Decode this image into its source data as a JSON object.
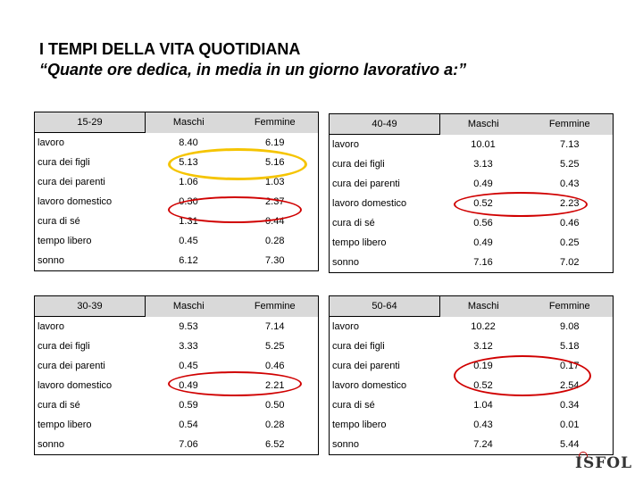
{
  "title": "I TEMPI DELLA VITA QUOTIDIANA",
  "subtitle": "“Quante ore dedica, in media in un giorno lavorativo a:”",
  "tables": [
    {
      "group": "15-29",
      "col1": "Maschi",
      "col2": "Femmine",
      "rows": [
        {
          "label": "lavoro",
          "m": "8.40",
          "f": "6.19"
        },
        {
          "label": "cura dei figli",
          "m": "5.13",
          "f": "5.16"
        },
        {
          "label": "cura dei parenti",
          "m": "1.06",
          "f": "1.03"
        },
        {
          "label": "lavoro domestico",
          "m": "0.30",
          "f": "2.37"
        },
        {
          "label": "cura di sé",
          "m": "1.31",
          "f": "0.44"
        },
        {
          "label": "tempo libero",
          "m": "0.45",
          "f": "0.28"
        },
        {
          "label": "sonno",
          "m": "6.12",
          "f": "7.30"
        }
      ]
    },
    {
      "group": "40-49",
      "col1": "Maschi",
      "col2": "Femmine",
      "rows": [
        {
          "label": "lavoro",
          "m": "10.01",
          "f": "7.13"
        },
        {
          "label": "cura dei figli",
          "m": "3.13",
          "f": "5.25"
        },
        {
          "label": "cura dei parenti",
          "m": "0.49",
          "f": "0.43"
        },
        {
          "label": "lavoro domestico",
          "m": "0.52",
          "f": "2.23"
        },
        {
          "label": "cura di sé",
          "m": "0.56",
          "f": "0.46"
        },
        {
          "label": "tempo libero",
          "m": "0.49",
          "f": "0.25"
        },
        {
          "label": "sonno",
          "m": "7.16",
          "f": "7.02"
        }
      ]
    },
    {
      "group": "30-39",
      "col1": "Maschi",
      "col2": "Femmine",
      "rows": [
        {
          "label": "lavoro",
          "m": "9.53",
          "f": "7.14"
        },
        {
          "label": "cura dei figli",
          "m": "3.33",
          "f": "5.25"
        },
        {
          "label": "cura dei parenti",
          "m": "0.45",
          "f": "0.46"
        },
        {
          "label": "lavoro domestico",
          "m": "0.49",
          "f": "2.21"
        },
        {
          "label": "cura di sé",
          "m": "0.59",
          "f": "0.50"
        },
        {
          "label": "tempo libero",
          "m": "0.54",
          "f": "0.28"
        },
        {
          "label": "sonno",
          "m": "7.06",
          "f": "6.52"
        }
      ]
    },
    {
      "group": "50-64",
      "col1": "Maschi",
      "col2": "Femmine",
      "rows": [
        {
          "label": "lavoro",
          "m": "10.22",
          "f": "9.08"
        },
        {
          "label": "cura dei figli",
          "m": "3.12",
          "f": "5.18"
        },
        {
          "label": "cura dei parenti",
          "m": "0.19",
          "f": "0.17"
        },
        {
          "label": "lavoro domestico",
          "m": "0.52",
          "f": "2.54"
        },
        {
          "label": "cura di sé",
          "m": "1.04",
          "f": "0.34"
        },
        {
          "label": "tempo libero",
          "m": "0.43",
          "f": "0.01"
        },
        {
          "label": "sonno",
          "m": "7.24",
          "f": "5.44"
        }
      ]
    }
  ],
  "highlight_colors": {
    "yellow": "#f5c400",
    "red": "#d00000",
    "header_gray": "#d9d9d9"
  },
  "logo": {
    "text": "ISFOL",
    "icon": "isfol-logo"
  }
}
